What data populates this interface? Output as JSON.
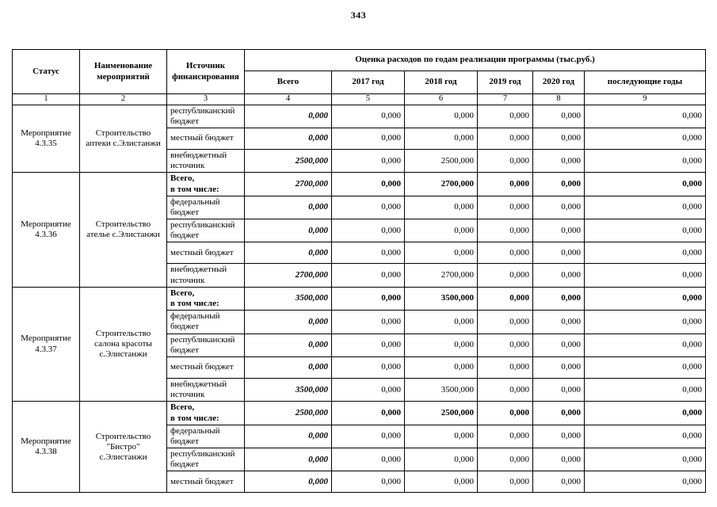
{
  "page_number": "343",
  "table": {
    "columns": {
      "status": "Статус",
      "name": "Наименование\nмероприятий",
      "source": "Источник\nфинансирования",
      "group_header": "Оценка расходов по годам реализации  программы (тыс.руб.)",
      "year_headers": [
        "Всего",
        "2017 год",
        "2018 год",
        "2019 год",
        "2020 год",
        "последующие годы"
      ],
      "number_row": [
        "1",
        "2",
        "3",
        "4",
        "5",
        "6",
        "7",
        "8",
        "9"
      ]
    },
    "groups": [
      {
        "status": "Мероприятие 4.3.35",
        "name": "Строительство аптеки с.Элистанжи",
        "rows": [
          {
            "source": "республиканский бюджет",
            "bold": false,
            "values": [
              "0,000",
              "0,000",
              "0,000",
              "0,000",
              "0,000",
              "0,000"
            ]
          },
          {
            "source": "местный бюджет",
            "bold": false,
            "values": [
              "0,000",
              "0,000",
              "0,000",
              "0,000",
              "0,000",
              "0,000"
            ]
          },
          {
            "source": "внебюджетный источник",
            "bold": false,
            "values": [
              "2500,000",
              "0,000",
              "2500,000",
              "0,000",
              "0,000",
              "0,000"
            ]
          }
        ]
      },
      {
        "status": "Мероприятие 4.3.36",
        "name": "Строительство ателье с.Элистанжи",
        "rows": [
          {
            "source": "Всего,\nв том числе:",
            "bold": true,
            "values": [
              "2700,000",
              "0,000",
              "2700,000",
              "0,000",
              "0,000",
              "0,000"
            ]
          },
          {
            "source": "федеральный бюджет",
            "bold": false,
            "values": [
              "0,000",
              "0,000",
              "0,000",
              "0,000",
              "0,000",
              "0,000"
            ]
          },
          {
            "source": "республиканский бюджет",
            "bold": false,
            "values": [
              "0,000",
              "0,000",
              "0,000",
              "0,000",
              "0,000",
              "0,000"
            ]
          },
          {
            "source": "местный бюджет",
            "bold": false,
            "values": [
              "0,000",
              "0,000",
              "0,000",
              "0,000",
              "0,000",
              "0,000"
            ]
          },
          {
            "source": "внебюджетный источник",
            "bold": false,
            "values": [
              "2700,000",
              "0,000",
              "2700,000",
              "0,000",
              "0,000",
              "0,000"
            ]
          }
        ]
      },
      {
        "status": "Мероприятие 4.3.37",
        "name": "Строительство салона красоты с.Элистанжи",
        "rows": [
          {
            "source": "Всего,\nв том числе:",
            "bold": true,
            "values": [
              "3500,000",
              "0,000",
              "3500,000",
              "0,000",
              "0,000",
              "0,000"
            ]
          },
          {
            "source": "федеральный бюджет",
            "bold": false,
            "values": [
              "0,000",
              "0,000",
              "0,000",
              "0,000",
              "0,000",
              "0,000"
            ]
          },
          {
            "source": "республиканский бюджет",
            "bold": false,
            "values": [
              "0,000",
              "0,000",
              "0,000",
              "0,000",
              "0,000",
              "0,000"
            ]
          },
          {
            "source": "местный бюджет",
            "bold": false,
            "values": [
              "0,000",
              "0,000",
              "0,000",
              "0,000",
              "0,000",
              "0,000"
            ]
          },
          {
            "source": "внебюджетный источник",
            "bold": false,
            "values": [
              "3500,000",
              "0,000",
              "3500,000",
              "0,000",
              "0,000",
              "0,000"
            ]
          }
        ]
      },
      {
        "status": "Мероприятие 4.3.38",
        "name": "Строительство \"Бистро\" с.Элистанжи",
        "rows": [
          {
            "source": "Всего,\nв том числе:",
            "bold": true,
            "values": [
              "2500,000",
              "0,000",
              "2500,000",
              "0,000",
              "0,000",
              "0,000"
            ]
          },
          {
            "source": "федеральный бюджет",
            "bold": false,
            "values": [
              "0,000",
              "0,000",
              "0,000",
              "0,000",
              "0,000",
              "0,000"
            ]
          },
          {
            "source": "республиканский бюджет",
            "bold": false,
            "values": [
              "0,000",
              "0,000",
              "0,000",
              "0,000",
              "0,000",
              "0,000"
            ]
          },
          {
            "source": "местный бюджет",
            "bold": false,
            "values": [
              "0,000",
              "0,000",
              "0,000",
              "0,000",
              "0,000",
              "0,000"
            ]
          }
        ]
      }
    ]
  }
}
